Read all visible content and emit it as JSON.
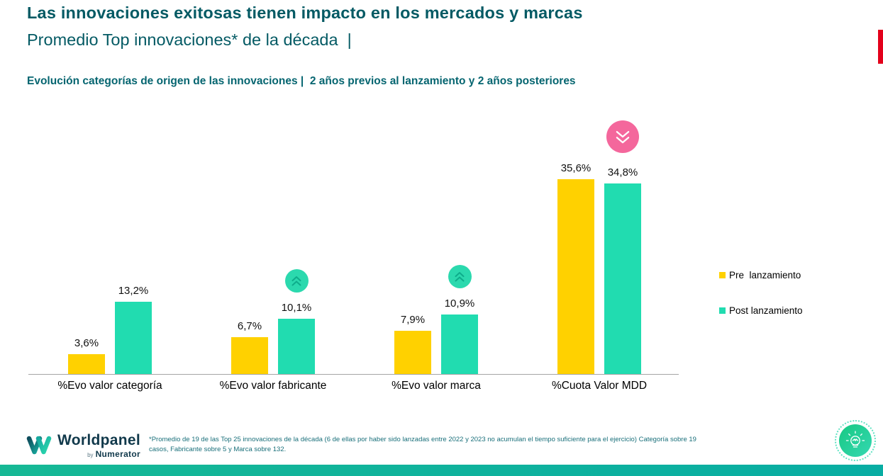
{
  "slide": {
    "title": "Las innovaciones exitosas tienen impacto en los mercados y marcas",
    "subtitle": "Promedio Top innovaciones* de la década  |",
    "section_heading": "Evolución categorías de origen de las innovaciones |  2 años previos al lanzamiento y 2 años posteriores"
  },
  "chart_data": {
    "type": "bar",
    "categories": [
      "%Evo valor categoría",
      "%Evo valor fabricante",
      "%Evo valor marca",
      "%Cuota Valor MDD"
    ],
    "series": [
      {
        "name": "Pre  lanzamiento",
        "color": "#FFD100",
        "values": [
          3.6,
          6.7,
          7.9,
          35.6
        ],
        "labels": [
          "3,6%",
          "6,7%",
          "7,9%",
          "35,6%"
        ]
      },
      {
        "name": "Post lanzamiento",
        "color": "#21DCB0",
        "values": [
          13.2,
          10.1,
          10.9,
          34.8
        ],
        "labels": [
          "13,2%",
          "10,1%",
          "10,9%",
          "34,8%"
        ]
      }
    ],
    "value_labels": true,
    "gridlines": false,
    "y_axis_visible": false,
    "ylim": [
      0,
      38
    ],
    "legend_position": "right",
    "annotations": [
      {
        "category_index": 1,
        "series": "Post lanzamiento",
        "direction": "up",
        "icon": "double-chevron-up-circle"
      },
      {
        "category_index": 2,
        "series": "Post lanzamiento",
        "direction": "up",
        "icon": "double-chevron-up-circle"
      },
      {
        "category_index": 3,
        "series": "Post lanzamiento",
        "direction": "down",
        "icon": "double-chevron-down-circle"
      }
    ]
  },
  "footer": {
    "logo_brand": "Worldpanel",
    "logo_by": "by",
    "logo_subbrand": "Numerator",
    "footnote": "*Promedio de 19 de las Top 25 innovaciones de la década (6 de ellas por haber sido lanzadas entre 2022 y 2023 no acumulan el tiempo suficiente para el ejercicio) Categoría sobre 19 casos, Fabricante sobre 5 y Marca sobre 132."
  },
  "icons": {
    "up_badge": "double-chevron-up-icon",
    "down_badge": "double-chevron-down-icon",
    "corner": "lightbulb-icon",
    "logo": "worldpanel-w-icon"
  },
  "colors": {
    "title": "#045A64",
    "heading": "#056570",
    "bar_pre": "#FFD100",
    "bar_post": "#21DCB0",
    "badge_up": "#2BD9AE",
    "badge_down": "#F4679C",
    "accent_red": "#E3001B",
    "footnote": "#196F7A",
    "bottom_bar": "#0CB09E",
    "axis": "#A5A5A5"
  }
}
